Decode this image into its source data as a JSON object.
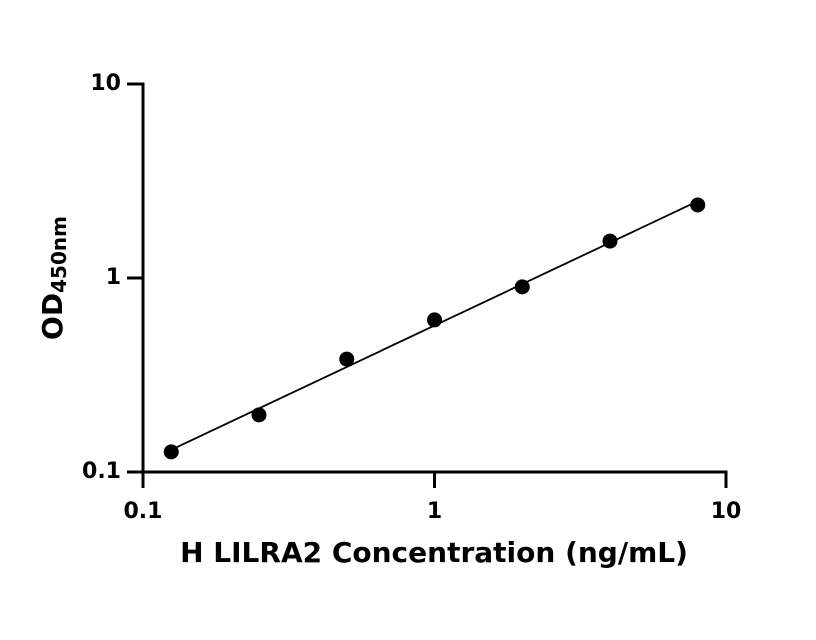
{
  "chart_data": {
    "type": "scatter",
    "xlabel": "H LILRA2 Concentration (ng/mL)",
    "ylabel": "OD",
    "ylabel_subscript": "450nm",
    "x": [
      0.125,
      0.25,
      0.5,
      1,
      2,
      4,
      8
    ],
    "values": [
      0.127,
      0.197,
      0.382,
      0.608,
      0.9,
      1.55,
      2.38
    ],
    "color": "#000000",
    "xlim": [
      0.1,
      10
    ],
    "ylim": [
      0.1,
      10
    ],
    "xticks": [
      0.1,
      1,
      10
    ],
    "yticks": [
      0.1,
      1,
      10
    ],
    "xscale": "log",
    "yscale": "log",
    "fit_line": true,
    "grid": false
  }
}
